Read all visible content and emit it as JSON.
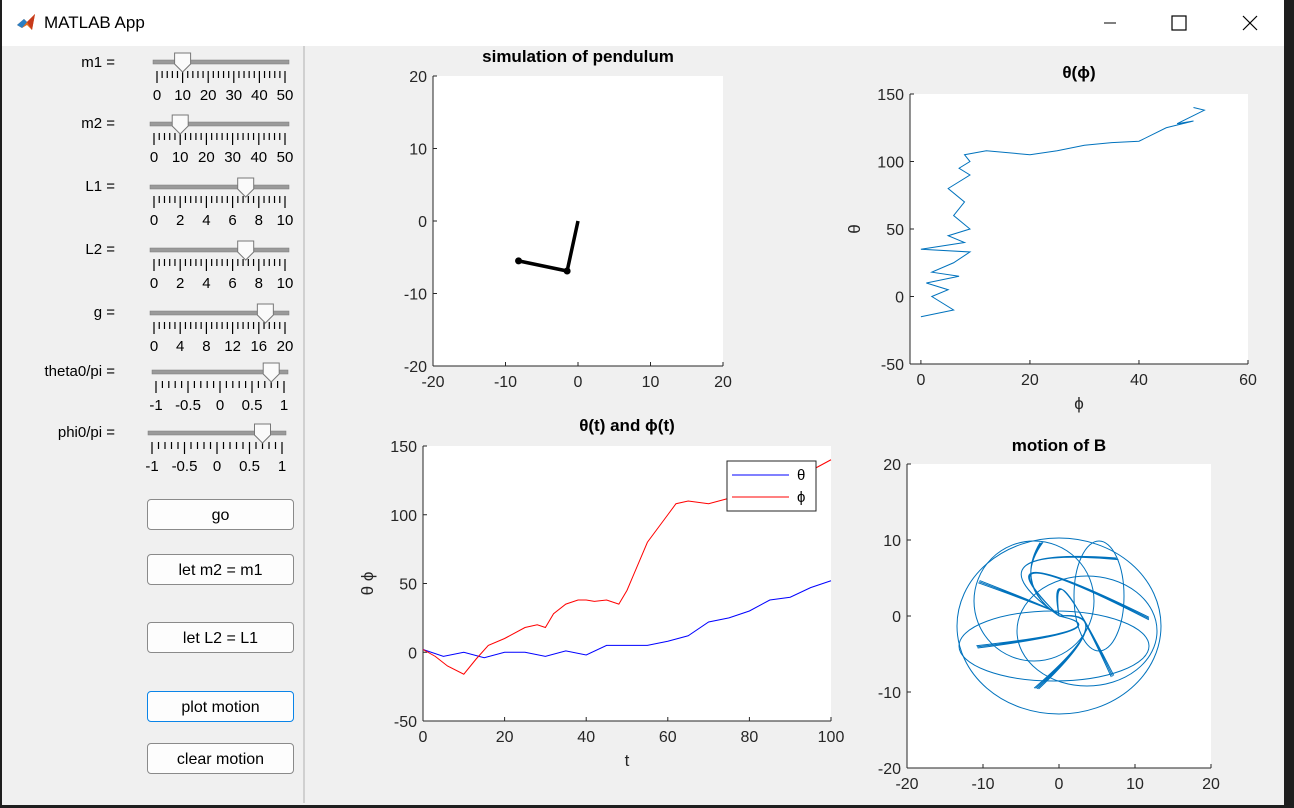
{
  "window": {
    "title": "MATLAB App"
  },
  "sliders": [
    {
      "label": "m1 =",
      "min": 0,
      "max": 50,
      "value": 10,
      "ticks": [
        "0",
        "10",
        "20",
        "30",
        "40",
        "50"
      ]
    },
    {
      "label": "m2 =",
      "min": 0,
      "max": 50,
      "value": 10,
      "ticks": [
        "0",
        "10",
        "20",
        "30",
        "40",
        "50"
      ]
    },
    {
      "label": "L1 =",
      "min": 0,
      "max": 10,
      "value": 7,
      "ticks": [
        "0",
        "2",
        "4",
        "6",
        "8",
        "10"
      ]
    },
    {
      "label": "L2 =",
      "min": 0,
      "max": 10,
      "value": 7,
      "ticks": [
        "0",
        "2",
        "4",
        "6",
        "8",
        "10"
      ]
    },
    {
      "label": "g =",
      "min": 0,
      "max": 20,
      "value": 17,
      "ticks": [
        "0",
        "4",
        "8",
        "12",
        "16",
        "20"
      ]
    },
    {
      "label": "theta0/pi =",
      "min": -1,
      "max": 1,
      "value": 0.8,
      "ticks": [
        "-1",
        "-0.5",
        "0",
        "0.5",
        "1"
      ]
    },
    {
      "label": "phi0/pi =",
      "min": -1,
      "max": 1,
      "value": 0.7,
      "ticks": [
        "-1",
        "-0.5",
        "0",
        "0.5",
        "1"
      ]
    }
  ],
  "buttons": {
    "go": "go",
    "let_m2": "let m2 = m1",
    "let_l2": "let L2 = L1",
    "plot_motion": "plot motion",
    "clear_motion": "clear motion"
  },
  "chart_data": [
    {
      "type": "line",
      "title": "simulation of pendulum",
      "xlim": [
        -20,
        20
      ],
      "ylim": [
        -20,
        20
      ],
      "xticks": [
        "-20",
        "-10",
        "0",
        "10",
        "20"
      ],
      "yticks": [
        "20",
        "10",
        "0",
        "-10",
        "-20"
      ],
      "series": [
        {
          "x": [
            0,
            -1.5,
            -8.2
          ],
          "y": [
            0,
            -6.9,
            -5.5
          ]
        }
      ]
    },
    {
      "type": "line",
      "title": "θ(ϕ)",
      "xlabel": "ϕ",
      "ylabel": "θ",
      "xlim": [
        -2,
        60
      ],
      "ylim": [
        -50,
        150
      ],
      "xticks": [
        "0",
        "20",
        "40",
        "60"
      ],
      "yticks": [
        "150",
        "100",
        "50",
        "0",
        "-50"
      ],
      "series": [
        {
          "x": [
            0,
            6,
            2,
            5,
            1,
            7,
            2,
            6,
            9,
            0,
            8,
            5,
            9,
            6,
            8,
            5,
            9,
            7,
            9,
            8,
            12,
            20,
            25,
            30,
            35,
            40,
            45,
            50,
            47,
            52,
            50
          ],
          "y": [
            -15,
            -10,
            0,
            5,
            10,
            15,
            18,
            25,
            33,
            35,
            40,
            45,
            50,
            60,
            70,
            80,
            90,
            95,
            100,
            105,
            108,
            105,
            108,
            112,
            114,
            115,
            125,
            130,
            128,
            138,
            140
          ]
        }
      ]
    },
    {
      "type": "line",
      "title": "θ(t)  and  ϕ(t)",
      "xlabel": "t",
      "ylabel": "θ    ϕ",
      "xlim": [
        0,
        100
      ],
      "ylim": [
        -50,
        150
      ],
      "xticks": [
        "0",
        "20",
        "40",
        "60",
        "80",
        "100"
      ],
      "yticks": [
        "150",
        "100",
        "50",
        "0",
        "-50"
      ],
      "legend": "top-right",
      "series": [
        {
          "name": "θ",
          "color": "#0000ff",
          "x": [
            0,
            5,
            10,
            15,
            20,
            25,
            30,
            35,
            40,
            45,
            50,
            55,
            60,
            65,
            70,
            75,
            80,
            85,
            90,
            95,
            100
          ],
          "y": [
            2,
            -3,
            0,
            -4,
            0,
            0,
            -3,
            1,
            -2,
            5,
            5,
            5,
            8,
            12,
            22,
            25,
            30,
            38,
            40,
            47,
            52
          ]
        },
        {
          "name": "ϕ",
          "color": "#ff0000",
          "x": [
            0,
            3,
            6,
            10,
            13,
            16,
            20,
            25,
            28,
            30,
            32,
            35,
            38,
            40,
            42,
            45,
            48,
            50,
            55,
            60,
            62,
            65,
            70,
            75,
            80,
            85,
            90,
            95,
            100
          ],
          "y": [
            2,
            -3,
            -10,
            -16,
            -5,
            5,
            10,
            18,
            20,
            18,
            28,
            35,
            38,
            38,
            37,
            38,
            35,
            45,
            80,
            100,
            108,
            110,
            108,
            112,
            118,
            122,
            125,
            132,
            140
          ]
        }
      ]
    },
    {
      "type": "line",
      "title": "motion of B",
      "xlim": [
        -20,
        20
      ],
      "ylim": [
        -20,
        20
      ],
      "xticks": [
        "-20",
        "-10",
        "0",
        "10",
        "20"
      ],
      "yticks": [
        "20",
        "10",
        "0",
        "-10",
        "-20"
      ]
    }
  ]
}
